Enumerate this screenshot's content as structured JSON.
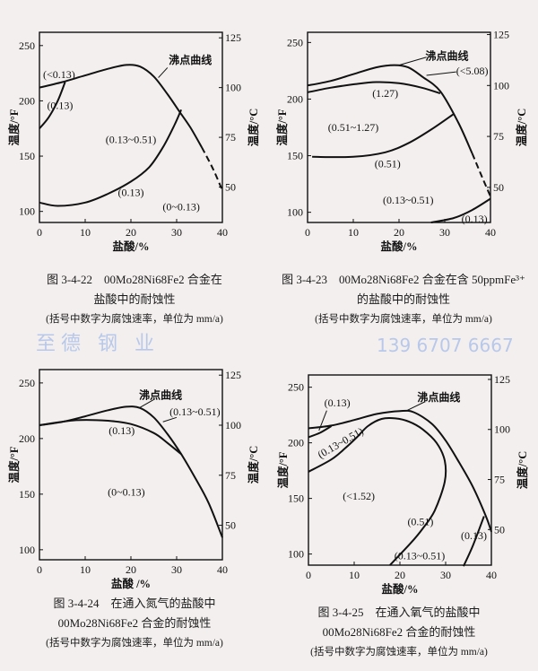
{
  "chart_data": [
    {
      "type": "line",
      "title": "图 3-4-22　00Mo28Ni68Fe2 合金在盐酸中的耐蚀性",
      "xlabel": "盐酸/%",
      "ylabel": "温度/°F",
      "y2label": "温度/°C",
      "xlim": [
        0,
        40
      ],
      "ylim": [
        90,
        262
      ],
      "xticks": [
        0,
        10,
        20,
        30,
        40
      ],
      "yticks": [
        100,
        150,
        200,
        250
      ],
      "y2ticks": [
        50,
        75,
        100,
        125
      ],
      "series": [
        {
          "name": "沸点曲线",
          "dashed_from": 37.5,
          "points": [
            [
              0,
              212
            ],
            [
              5,
              217
            ],
            [
              10,
              223
            ],
            [
              15,
              229
            ],
            [
              19,
              232.5
            ],
            [
              22,
              231
            ],
            [
              25,
              222
            ],
            [
              28,
              206
            ],
            [
              30.5,
              191
            ],
            [
              33,
              176
            ],
            [
              35.5,
              158
            ],
            [
              38,
              138
            ],
            [
              40,
              119
            ]
          ]
        },
        {
          "name": "(0.13) upper",
          "points": [
            [
              0,
              175
            ],
            [
              2,
              185
            ],
            [
              4,
              200
            ],
            [
              5.6,
              217
            ]
          ]
        },
        {
          "name": "(0.13) lower",
          "points": [
            [
              0,
              108
            ],
            [
              4,
              105
            ],
            [
              10,
              108
            ],
            [
              15,
              116
            ],
            [
              20,
              127
            ],
            [
              24,
              140
            ],
            [
              27,
              158
            ],
            [
              29.5,
              178
            ],
            [
              31,
              192
            ]
          ]
        }
      ],
      "labels": [
        {
          "text": "(<0.13)",
          "x": 4.3,
          "y": 224
        },
        {
          "text": "(0.13)",
          "x": 4.5,
          "y": 196
        },
        {
          "text": "(0.13~0.51)",
          "x": 20,
          "y": 165
        },
        {
          "text": "(0.13)",
          "x": 20,
          "y": 117
        },
        {
          "text": "(0~0.13)",
          "x": 31,
          "y": 104
        },
        {
          "text": "沸点曲线",
          "x": 33,
          "y": 237,
          "leader": [
            [
              26,
              221
            ],
            [
              28,
              230
            ]
          ]
        }
      ],
      "caption": {
        "line1": "图 3-4-22　00Mo28Ni68Fe2 合金在",
        "line2": "盐酸中的耐蚀性",
        "note": "(括号中数字为腐蚀速率，单位为 mm/a)"
      }
    },
    {
      "type": "line",
      "title": "图 3-4-23　00Mo28Ni68Fe2 合金在含 50ppmFe³⁺ 的盐酸中的耐蚀性",
      "xlabel": "盐酸/%",
      "ylabel": "温度/°F",
      "y2label": "温度/°C",
      "xlim": [
        0,
        40
      ],
      "ylim": [
        91,
        259
      ],
      "xticks": [
        0,
        10,
        20,
        30,
        40
      ],
      "yticks": [
        100,
        150,
        200,
        250
      ],
      "y2ticks": [
        50,
        75,
        100,
        125
      ],
      "series": [
        {
          "name": "沸点曲线",
          "dashed_from": 38,
          "points": [
            [
              0,
              212
            ],
            [
              5,
              216
            ],
            [
              10,
              222
            ],
            [
              15,
              228
            ],
            [
              19,
              230
            ],
            [
              22,
              228
            ],
            [
              25,
              220
            ],
            [
              29,
              207
            ],
            [
              33,
              179
            ],
            [
              36,
              152
            ],
            [
              38.5,
              128
            ],
            [
              40,
              114
            ]
          ]
        },
        {
          "name": "(1.27)",
          "points": [
            [
              0,
              206
            ],
            [
              5,
              210
            ],
            [
              10,
              213
            ],
            [
              15,
              215
            ],
            [
              20,
              214
            ],
            [
              25,
              210
            ],
            [
              29,
              205
            ]
          ]
        },
        {
          "name": "(0.51)",
          "points": [
            [
              1,
              149
            ],
            [
              10,
              149
            ],
            [
              17,
              153
            ],
            [
              22,
              161
            ],
            [
              27,
              173
            ],
            [
              32,
              187
            ]
          ]
        },
        {
          "name": "(0.13)",
          "points": [
            [
              27,
              91
            ],
            [
              32,
              95
            ],
            [
              36,
              102
            ],
            [
              40,
              112
            ]
          ]
        }
      ],
      "labels": [
        {
          "text": "沸点曲线",
          "x": 30.5,
          "y": 238,
          "leader": [
            [
              20,
              230
            ],
            [
              26,
              237
            ]
          ]
        },
        {
          "text": "(<5.08)",
          "x": 36,
          "y": 225,
          "leader": [
            [
              26,
              221
            ],
            [
              32.5,
              224
            ]
          ]
        },
        {
          "text": "(1.27)",
          "x": 17,
          "y": 205
        },
        {
          "text": "(0.51~1.27)",
          "x": 10,
          "y": 175
        },
        {
          "text": "(0.51)",
          "x": 17.5,
          "y": 143
        },
        {
          "text": "(0.13~0.51)",
          "x": 22,
          "y": 111
        },
        {
          "text": "(0.13)",
          "x": 36.5,
          "y": 94
        }
      ],
      "caption": {
        "line1": "图 3-4-23　00Mo28Ni68Fe2 合金在含 50ppmFe³⁺",
        "line2": "的盐酸中的耐蚀性",
        "note": "(括号中数字为腐蚀速率，单位为 mm/a)"
      }
    },
    {
      "type": "line",
      "title": "图 3-4-24　在通入氮气的盐酸中 00Mo28Ni68Fe2 合金的耐蚀性",
      "xlabel": "盐酸 /%",
      "ylabel": "温度/°F",
      "y2label": "温度/°C",
      "xlim": [
        0,
        40
      ],
      "ylim": [
        91,
        262
      ],
      "xticks": [
        0,
        10,
        20,
        30,
        40
      ],
      "yticks": [
        100,
        150,
        200,
        250
      ],
      "y2ticks": [
        50,
        75,
        100,
        125
      ],
      "series": [
        {
          "name": "沸点曲线",
          "points": [
            [
              0,
              212
            ],
            [
              5,
              215
            ],
            [
              10,
              220
            ],
            [
              15,
              225.5
            ],
            [
              19,
              228.6
            ],
            [
              22,
              227.5
            ],
            [
              25,
              219
            ],
            [
              28,
              204
            ],
            [
              31,
              186
            ],
            [
              34,
              165
            ],
            [
              37,
              142
            ],
            [
              40,
              111
            ]
          ]
        },
        {
          "name": "(0.13)",
          "points": [
            [
              0,
              212
            ],
            [
              8,
              216.5
            ],
            [
              15,
              216
            ],
            [
              20,
              213
            ],
            [
              25,
              205
            ],
            [
              28,
              196
            ],
            [
              31,
              186
            ]
          ]
        }
      ],
      "labels": [
        {
          "text": "沸点曲线",
          "x": 26.5,
          "y": 239,
          "leader": [
            [
              22,
              228
            ],
            [
              25,
              235
            ]
          ]
        },
        {
          "text": "(0.13~0.51)",
          "x": 34,
          "y": 224,
          "leader": [
            [
              27,
              215
            ],
            [
              30,
              219
            ]
          ]
        },
        {
          "text": "(0.13)",
          "x": 18,
          "y": 207
        },
        {
          "text": "(0~0.13)",
          "x": 19,
          "y": 152
        }
      ],
      "caption": {
        "line1": "图 3-4-24　在通入氮气的盐酸中",
        "line2": "00Mo28Ni68Fe2 合金的耐蚀性",
        "note": "(括号中数字为腐蚀速率，单位为 mm/a)"
      }
    },
    {
      "type": "line",
      "title": "图 3-4-25　在通入氧气的盐酸中 00Mo28Ni68Fe2 合金的耐蚀性",
      "xlabel": "盐酸/%",
      "ylabel": "温度/°F",
      "y2label": "温度/°C",
      "xlim": [
        0,
        40
      ],
      "ylim": [
        90,
        261
      ],
      "xticks": [
        0,
        10,
        20,
        30,
        40
      ],
      "yticks": [
        100,
        150,
        200,
        250
      ],
      "y2ticks": [
        50,
        75,
        100,
        125
      ],
      "series": [
        {
          "name": "沸点曲线",
          "points": [
            [
              0,
              213
            ],
            [
              5,
              215.5
            ],
            [
              10,
              220.5
            ],
            [
              15,
              226
            ],
            [
              20,
              228.6
            ],
            [
              23,
              227.5
            ],
            [
              27,
              217
            ],
            [
              30,
              202
            ],
            [
              33,
              182
            ],
            [
              36,
              160
            ],
            [
              38.8,
              134
            ],
            [
              40,
              120
            ]
          ]
        },
        {
          "name": "(0.13) upper",
          "points": [
            [
              0,
              205
            ],
            [
              2.5,
              209
            ],
            [
              5,
              215
            ]
          ]
        },
        {
          "name": "(0.51)",
          "points": [
            [
              0,
              174
            ],
            [
              5,
              185
            ],
            [
              8,
              195
            ],
            [
              10.6,
              205
            ],
            [
              13,
              215
            ],
            [
              16,
              221.5
            ],
            [
              19,
              222
            ],
            [
              22,
              219
            ],
            [
              25,
              212
            ],
            [
              28,
              200
            ],
            [
              29.8,
              184
            ],
            [
              29.8,
              165
            ],
            [
              27.6,
              139
            ],
            [
              25,
              123
            ],
            [
              22.4,
              110
            ],
            [
              17.8,
              90
            ]
          ]
        },
        {
          "name": "(0.13) lower",
          "points": [
            [
              33.9,
              89
            ],
            [
              36,
              108
            ],
            [
              38.4,
              134
            ]
          ]
        }
      ],
      "labels": [
        {
          "text": "(0.13)",
          "x": 6.3,
          "y": 236,
          "leader": [
            [
              4,
              229
            ],
            [
              2.3,
              211
            ]
          ]
        },
        {
          "text": "沸点曲线",
          "x": 28.5,
          "y": 241,
          "leader": [
            [
              21.5,
              229
            ],
            [
              25.5,
              237
            ]
          ]
        },
        {
          "text": "(0.13~0.51)",
          "x": 7,
          "y": 200,
          "rotate": -30
        },
        {
          "text": "(<1.52)",
          "x": 11,
          "y": 152
        },
        {
          "text": "(0.51)",
          "x": 24.5,
          "y": 129
        },
        {
          "text": "(0.13~0.51)",
          "x": 25.5,
          "y": 104
        },
        {
          "text": "(0.13)",
          "x": 35,
          "y": 114
        }
      ],
      "caption": {
        "line1": "图 3-4-25　在通入氧气的盐酸中",
        "line2": "00Mo28Ni68Fe2 合金的耐蚀性",
        "note": "(括号中数字为腐蚀速率，单位为 mm/a)"
      }
    }
  ],
  "watermark": {
    "company": "至德 钢 业",
    "phone": "139 6707 6667"
  }
}
